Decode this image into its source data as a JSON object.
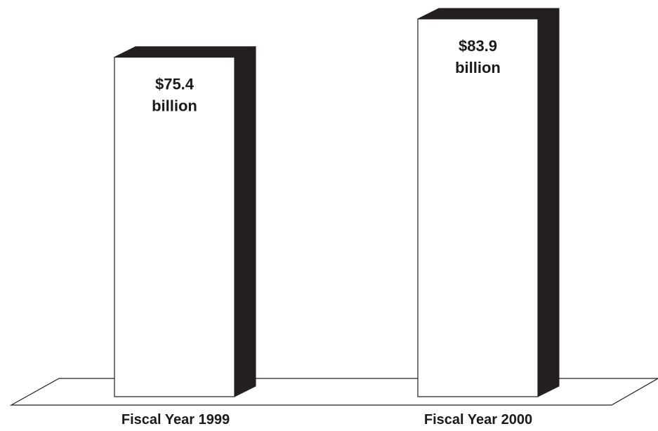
{
  "chart_data": {
    "type": "bar",
    "style": "3d",
    "categories": [
      "Fiscal Year 1999",
      "Fiscal Year 2000"
    ],
    "values": [
      75.4,
      83.9
    ],
    "value_labels": [
      [
        "$75.4",
        "billion"
      ],
      [
        "$83.9",
        "billion"
      ]
    ],
    "units": "billion dollars",
    "title": "",
    "xlabel": "",
    "ylabel": "",
    "grid": false,
    "legend": "none",
    "ylim": [
      0,
      90
    ],
    "colors": {
      "bar_face": "#ffffff",
      "bar_side": "#231f20",
      "outline": "#231f20",
      "text": "#1a1a1a"
    }
  }
}
